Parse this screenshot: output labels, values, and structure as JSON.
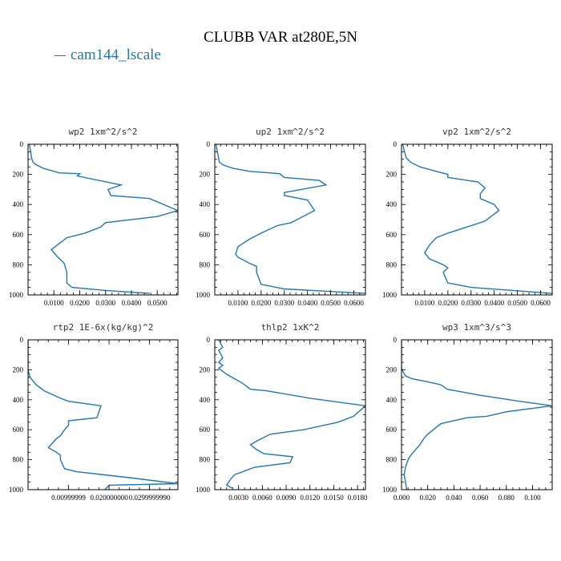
{
  "title": "CLUBB VAR at280E,5N",
  "legend": {
    "label": "cam144_lscale",
    "color": "#1f77b4"
  },
  "chart_data": [
    {
      "type": "line",
      "title": "wp2  1xm^2/s^2",
      "xlim": [
        0,
        0.058
      ],
      "ylim": [
        1000,
        0
      ],
      "y_inverted": true,
      "xticks": [
        0.01,
        0.02,
        0.03,
        0.04,
        0.05
      ],
      "xticklabels": [
        "0.0100",
        "0.0200",
        "0.0300",
        "0.0400",
        "0.0500"
      ],
      "yticks": [
        0,
        200,
        400,
        600,
        800,
        1000
      ],
      "series": [
        {
          "name": "cam144_lscale",
          "x": [
            0.0005,
            0.0015,
            0.002,
            0.003,
            0.006,
            0.012,
            0.02,
            0.019,
            0.036,
            0.031,
            0.032,
            0.047,
            0.058,
            0.05,
            0.03,
            0.028,
            0.022,
            0.015,
            0.012,
            0.009,
            0.011,
            0.014,
            0.015,
            0.015,
            0.017,
            0.03,
            0.047
          ],
          "y": [
            0,
            100,
            120,
            135,
            160,
            190,
            195,
            210,
            270,
            300,
            340,
            360,
            440,
            480,
            520,
            550,
            590,
            620,
            660,
            700,
            740,
            790,
            850,
            920,
            950,
            970,
            990
          ]
        }
      ]
    },
    {
      "type": "line",
      "title": "up2  1xm^2/s^2",
      "xlim": [
        0,
        0.065
      ],
      "ylim": [
        1000,
        0
      ],
      "y_inverted": true,
      "xticks": [
        0.01,
        0.02,
        0.03,
        0.04,
        0.05,
        0.06
      ],
      "xticklabels": [
        "0.0100",
        "0.0200",
        "0.0300",
        "0.0400",
        "0.0500",
        "0.0600"
      ],
      "yticks": [
        0,
        200,
        400,
        600,
        800,
        1000
      ],
      "series": [
        {
          "name": "cam144_lscale",
          "x": [
            0.0005,
            0.002,
            0.004,
            0.008,
            0.015,
            0.028,
            0.03,
            0.045,
            0.048,
            0.03,
            0.03,
            0.04,
            0.043,
            0.033,
            0.027,
            0.02,
            0.015,
            0.01,
            0.009,
            0.01,
            0.015,
            0.018,
            0.018,
            0.02,
            0.03,
            0.065
          ],
          "y": [
            0,
            120,
            140,
            160,
            180,
            195,
            220,
            240,
            270,
            320,
            340,
            370,
            440,
            520,
            540,
            590,
            630,
            680,
            730,
            750,
            790,
            810,
            850,
            930,
            960,
            990
          ]
        }
      ]
    },
    {
      "type": "line",
      "title": "vp2  1xm^2/s^2",
      "xlim": [
        0,
        0.065
      ],
      "ylim": [
        1000,
        0
      ],
      "y_inverted": true,
      "xticks": [
        0.01,
        0.02,
        0.03,
        0.04,
        0.05,
        0.06
      ],
      "xticklabels": [
        "0.0100",
        "0.0200",
        "0.0300",
        "0.0400",
        "0.0500",
        "0.0600"
      ],
      "yticks": [
        0,
        200,
        400,
        600,
        800,
        1000
      ],
      "series": [
        {
          "name": "cam144_lscale",
          "x": [
            0.0005,
            0.002,
            0.004,
            0.008,
            0.015,
            0.02,
            0.02,
            0.033,
            0.036,
            0.034,
            0.034,
            0.04,
            0.042,
            0.036,
            0.026,
            0.02,
            0.015,
            0.012,
            0.01,
            0.012,
            0.018,
            0.02,
            0.018,
            0.02,
            0.03,
            0.065
          ],
          "y": [
            0,
            90,
            120,
            150,
            180,
            200,
            220,
            250,
            290,
            330,
            360,
            400,
            440,
            510,
            560,
            590,
            620,
            670,
            720,
            760,
            800,
            820,
            850,
            920,
            950,
            990
          ]
        }
      ]
    },
    {
      "type": "line",
      "title": "rtp2  1E-6x(kg/kg)^2",
      "xlim": [
        0,
        0.037
      ],
      "ylim": [
        1000,
        0
      ],
      "y_inverted": true,
      "xticks": [
        0.01,
        0.02,
        0.03
      ],
      "xticklabels": [
        "0.00999999",
        "0.020000000",
        "0.0299999990"
      ],
      "yticks": [
        0,
        200,
        400,
        600,
        800,
        1000
      ],
      "series": [
        {
          "name": "cam144_lscale",
          "x": [
            0,
            0,
            0,
            0.0005,
            0.002,
            0.004,
            0.008,
            0.01,
            0.018,
            0.017,
            0.01,
            0.01,
            0.009,
            0.008,
            0.007,
            0.006,
            0.005,
            0.007,
            0.008,
            0.008,
            0.009,
            0.012,
            0.025,
            0.037,
            0.02,
            0.019
          ],
          "y": [
            0,
            100,
            200,
            250,
            300,
            340,
            390,
            410,
            440,
            520,
            540,
            570,
            600,
            640,
            660,
            690,
            720,
            750,
            770,
            800,
            860,
            880,
            920,
            960,
            970,
            1000
          ]
        }
      ]
    },
    {
      "type": "line",
      "title": "thlp2  1xK^2",
      "xlim": [
        0,
        0.019
      ],
      "ylim": [
        1000,
        0
      ],
      "y_inverted": true,
      "xticks": [
        0.003,
        0.006,
        0.009,
        0.012,
        0.015,
        0.018
      ],
      "xticklabels": [
        "0.0030",
        "0.0060",
        "0.0090",
        "0.0120",
        "0.0150",
        "0.0180"
      ],
      "yticks": [
        0,
        200,
        400,
        600,
        800,
        1000
      ],
      "series": [
        {
          "name": "cam144_lscale",
          "x": [
            0.0005,
            0.001,
            0.0005,
            0.001,
            0.0005,
            0.001,
            0.0005,
            0.001,
            0.0015,
            0.0025,
            0.0035,
            0.0045,
            0.0065,
            0.012,
            0.019,
            0.0175,
            0.0155,
            0.0112,
            0.007,
            0.0055,
            0.0045,
            0.0052,
            0.0062,
            0.0098,
            0.0095,
            0.005,
            0.0025,
            0.002,
            0.0015,
            0.0022
          ],
          "y": [
            0,
            50,
            70,
            120,
            150,
            170,
            190,
            210,
            230,
            260,
            290,
            330,
            340,
            390,
            440,
            510,
            550,
            600,
            630,
            670,
            700,
            730,
            760,
            780,
            820,
            850,
            900,
            930,
            970,
            990
          ]
        }
      ]
    },
    {
      "type": "line",
      "title": "wp3  1xm^3/s^3",
      "xlim": [
        0,
        0.115
      ],
      "ylim": [
        1000,
        0
      ],
      "y_inverted": true,
      "xticks": [
        0.0,
        0.02,
        0.04,
        0.06,
        0.08,
        0.1
      ],
      "xticklabels": [
        "0.000",
        "0.020",
        "0.040",
        "0.060",
        "0.080",
        "0.100"
      ],
      "yticks": [
        0,
        200,
        400,
        600,
        800,
        1000
      ],
      "series": [
        {
          "name": "cam144_lscale",
          "x": [
            0,
            0,
            0,
            0.001,
            0.003,
            0.008,
            0.02,
            0.03,
            0.035,
            0.06,
            0.09,
            0.115,
            0.08,
            0.065,
            0.05,
            0.03,
            0.02,
            0.017,
            0.014,
            0.01,
            0.007,
            0.005,
            0.003,
            0.002,
            0.003,
            0.004
          ],
          "y": [
            0,
            150,
            190,
            210,
            240,
            260,
            280,
            300,
            330,
            370,
            410,
            440,
            480,
            510,
            520,
            560,
            630,
            660,
            700,
            740,
            770,
            800,
            850,
            900,
            950,
            1000
          ]
        }
      ]
    }
  ]
}
